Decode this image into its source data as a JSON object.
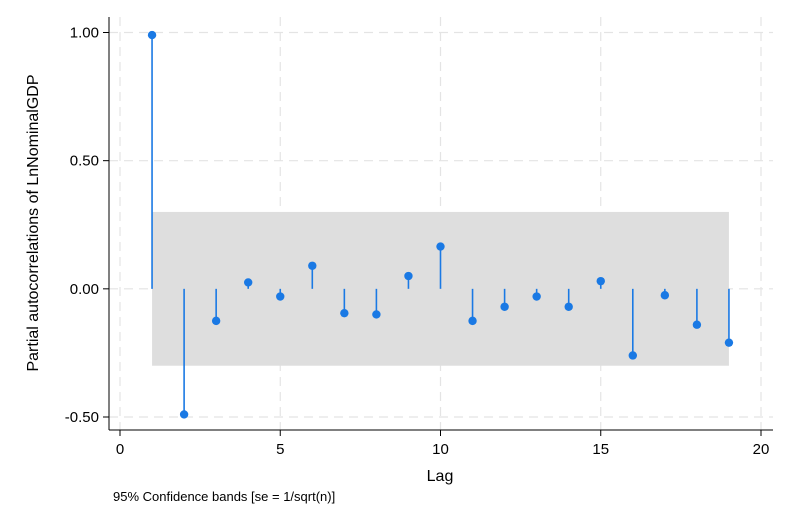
{
  "chart_data": {
    "type": "scatter",
    "variant": "partial-autocorrelation stem plot with confidence band",
    "title": "",
    "xlabel": "Lag",
    "ylabel": "Partial autocorrelations of LnNominalGDP",
    "xlim": [
      0,
      20
    ],
    "ylim": [
      -0.5,
      1.0
    ],
    "x_ticks": [
      0,
      5,
      10,
      15,
      20
    ],
    "x_tick_labels": [
      "0",
      "5",
      "10",
      "15",
      "20"
    ],
    "y_ticks": [
      -0.5,
      0,
      0.5,
      1.0
    ],
    "y_tick_labels": [
      "-0.50",
      "0.00",
      "0.50",
      "1.00"
    ],
    "grid": true,
    "confidence_band": {
      "from_lag": 1,
      "to_lag": 19,
      "lower": -0.3,
      "upper": 0.3
    },
    "lags": [
      1,
      2,
      3,
      4,
      5,
      6,
      7,
      8,
      9,
      10,
      11,
      12,
      13,
      14,
      15,
      16,
      17,
      18,
      19
    ],
    "values": [
      0.99,
      -0.49,
      -0.125,
      0.025,
      -0.03,
      0.09,
      -0.095,
      -0.1,
      0.05,
      0.165,
      -0.125,
      -0.07,
      -0.03,
      -0.07,
      0.03,
      -0.26,
      -0.025,
      -0.14,
      -0.21
    ],
    "colors": {
      "stem": "#1a79e4",
      "band": "#dedede",
      "grid": "#e4e4e4"
    },
    "note": "95% Confidence bands [se = 1/sqrt(n)]"
  }
}
